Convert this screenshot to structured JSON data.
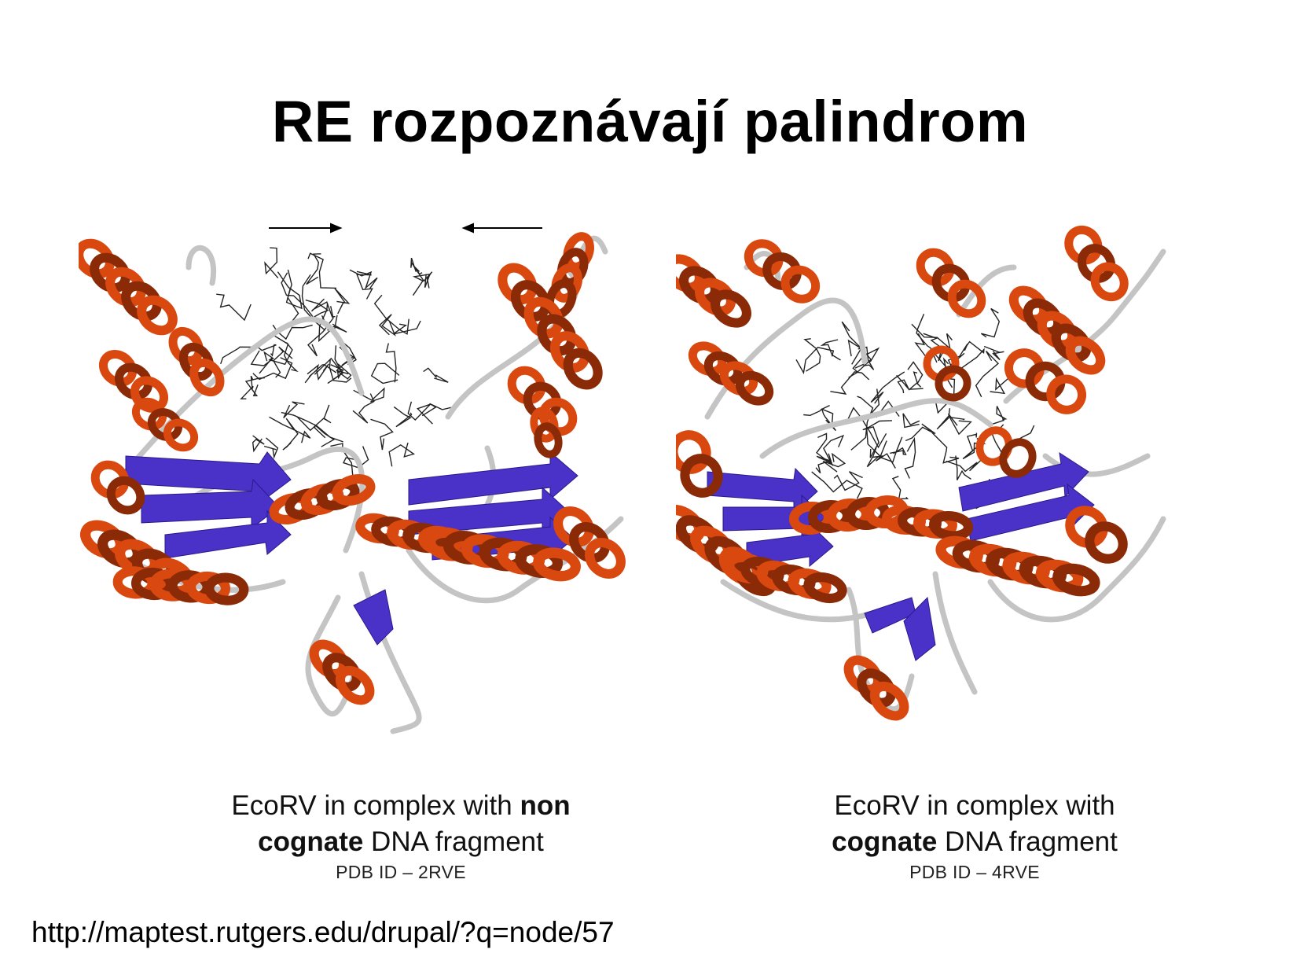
{
  "slide": {
    "title": "RE rozpoznávají palindrom"
  },
  "figures": {
    "left": {
      "caption_line1_pre": "EcoRV in complex with ",
      "caption_line1_bold": "non",
      "caption_line2_bold": "cognate",
      "caption_line2_post": " DNA fragment",
      "pdb_id": "PDB ID – 2RVE"
    },
    "right": {
      "caption_line1": "EcoRV in complex with",
      "caption_line2_bold": "cognate",
      "caption_line2_post": " DNA fragment",
      "pdb_id": "PDB ID – 4RVE"
    }
  },
  "colors": {
    "helix": "#d9480f",
    "helix_dark": "#8a2a06",
    "sheet": "#4a32c8",
    "coil": "#c8c8c8",
    "dna": "#222222"
  },
  "footer": {
    "url": "http://maptest.rutgers.edu/drupal/?q=node/57"
  }
}
